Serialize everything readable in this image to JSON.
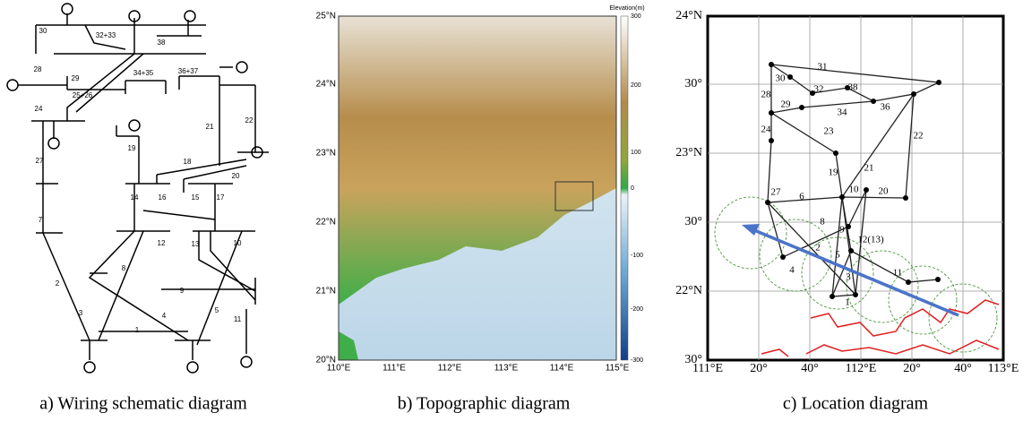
{
  "panels": [
    {
      "caption": "a) Wiring schematic diagram",
      "labels": [
        "30",
        "32+33",
        "38",
        "28",
        "29",
        "34+35",
        "36+37",
        "25+26",
        "24",
        "19",
        "21",
        "22",
        "27",
        "18",
        "20",
        "14",
        "16",
        "15",
        "17",
        "7",
        "12",
        "13",
        "10",
        "8",
        "9",
        "2",
        "3",
        "4",
        "5",
        "1",
        "11"
      ]
    },
    {
      "caption": "b) Topographic diagram",
      "colorbar_title": "Elevation(m)",
      "colorbar_ticks": [
        "300",
        "200",
        "100",
        "0",
        "-100",
        "-200",
        "-300"
      ],
      "x_labels": [
        "110°E",
        "111°E",
        "112°E",
        "113°E",
        "114°E",
        "115°E"
      ],
      "y_labels": [
        "25°N",
        "24°N",
        "23°N",
        "22°N",
        "21°N",
        "20°N"
      ]
    },
    {
      "caption": "c) Location diagram",
      "x_labels": [
        "111°E",
        "20°",
        "40°",
        "112°E",
        "20°",
        "40°",
        "113°E"
      ],
      "y_labels": [
        "24°N",
        "30°",
        "23°N",
        "30°",
        "22°N",
        "30°"
      ],
      "node_labels": [
        "31",
        "30",
        "32",
        "38",
        "28",
        "29",
        "34",
        "36",
        "24",
        "23",
        "21",
        "22",
        "19",
        "27",
        "10",
        "20",
        "6",
        "8",
        "9",
        "12(13)",
        "2",
        "5",
        "4",
        "3",
        "11",
        "1"
      ]
    }
  ]
}
